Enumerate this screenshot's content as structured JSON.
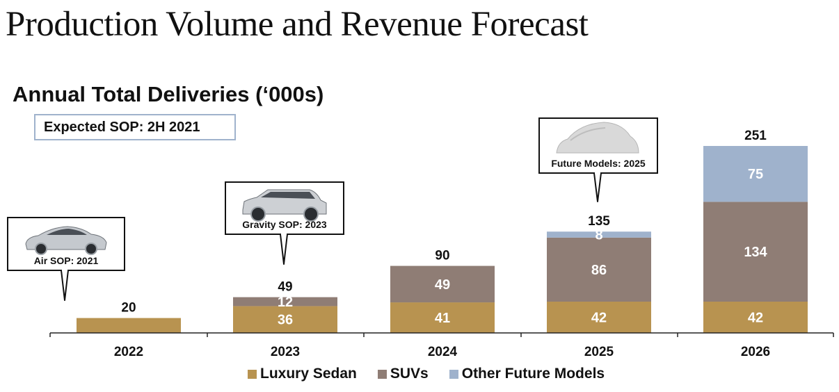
{
  "page": {
    "title": "Production Volume and Revenue Forecast",
    "subtitle": "Annual Total Deliveries (‘000s)",
    "sop_note": "Expected SOP:  2H 2021"
  },
  "chart_data": {
    "type": "bar",
    "stacked": true,
    "title": "Annual Total Deliveries (‘000s)",
    "categories": [
      "2022",
      "2023",
      "2024",
      "2025",
      "2026"
    ],
    "series": [
      {
        "name": "Luxury Sedan",
        "color": "#b89350",
        "values": [
          20,
          36,
          41,
          42,
          42
        ]
      },
      {
        "name": "SUVs",
        "color": "#8f7d75",
        "values": [
          0,
          12,
          49,
          86,
          134
        ]
      },
      {
        "name": "Other Future Models",
        "color": "#9fb2cc",
        "values": [
          0,
          0,
          0,
          8,
          75
        ]
      }
    ],
    "totals": [
      "20",
      "49",
      "90",
      "135",
      "251"
    ],
    "segment_labels": [
      [
        "",
        "",
        ""
      ],
      [
        "36",
        "12",
        ""
      ],
      [
        "41",
        "49",
        ""
      ],
      [
        "42",
        "86",
        "8"
      ],
      [
        "42",
        "134",
        "75"
      ]
    ],
    "ylim": [
      0,
      251
    ],
    "grid": false,
    "legend_position": "bottom",
    "annotations": [
      {
        "text": "Air SOP: 2021",
        "category": "2022",
        "icon": "sedan-car-icon"
      },
      {
        "text": "Gravity SOP: 2023",
        "category": "2023",
        "icon": "suv-car-icon"
      },
      {
        "text": "Future Models: 2025",
        "category": "2025",
        "icon": "covered-car-icon"
      }
    ]
  }
}
